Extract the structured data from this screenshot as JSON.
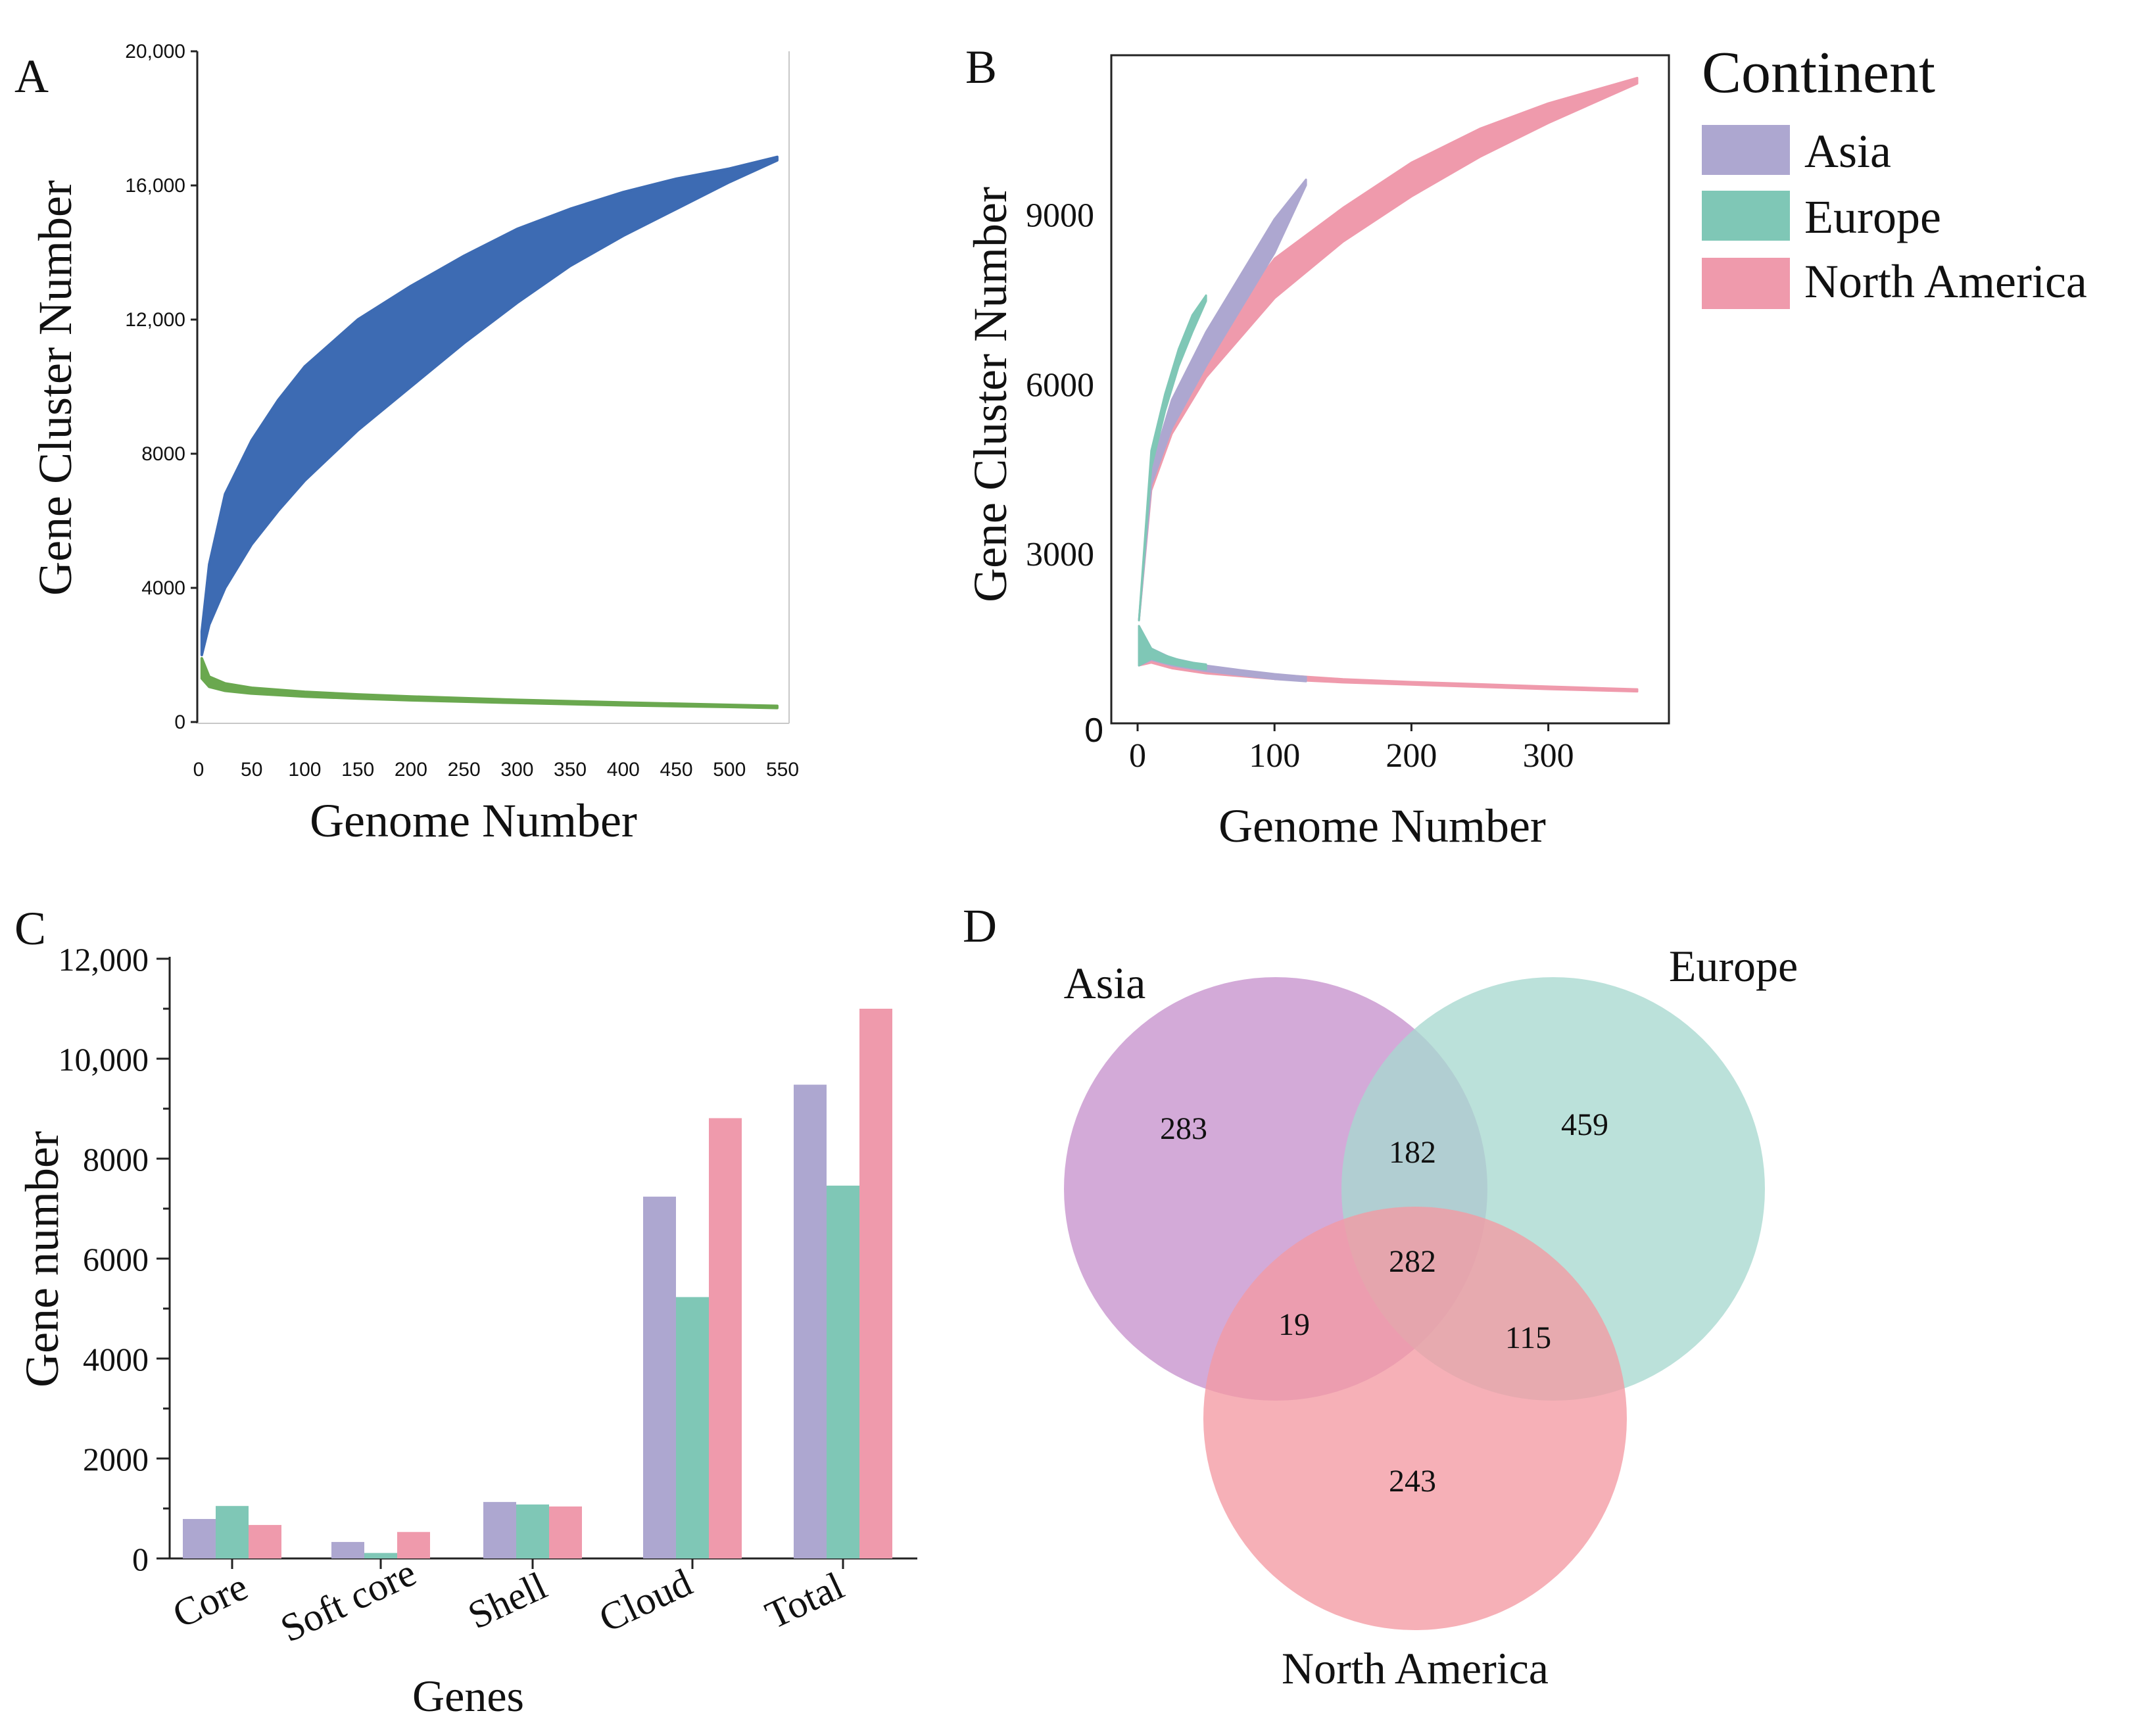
{
  "panels": {
    "A": {
      "letter": "A",
      "xlabel": "Genome Number",
      "ylabel": "Gene Cluster Number",
      "xticks": [
        "0",
        "50",
        "100",
        "150",
        "200",
        "250",
        "300",
        "350",
        "400",
        "450",
        "500",
        "550"
      ],
      "yticks": [
        "0",
        "4000",
        "8000",
        "12,000",
        "16,000",
        "20,000"
      ]
    },
    "B": {
      "letter": "B",
      "xlabel": "Genome Number",
      "ylabel": "Gene Cluster Number",
      "xticks": [
        "0",
        "100",
        "200",
        "300"
      ],
      "yticks": [
        "0",
        "3000",
        "6000",
        "9000"
      ],
      "legend": {
        "title": "Continent",
        "items": [
          {
            "label": "Asia",
            "color": "#ada7d0"
          },
          {
            "label": "Europe",
            "color": "#7fc7b6"
          },
          {
            "label": "North America",
            "color": "#ef9aac"
          }
        ]
      }
    },
    "C": {
      "letter": "C",
      "xlabel": "Genes",
      "ylabel": "Gene number",
      "yticks": [
        "0",
        "2000",
        "4000",
        "6000",
        "8000",
        "10,000",
        "12,000"
      ]
    },
    "D": {
      "letter": "D",
      "labels": {
        "asia": "Asia",
        "europe": "Europe",
        "north_america": "North America"
      },
      "regions": {
        "asia_only": "283",
        "europe_only": "459",
        "na_only": "243",
        "asia_europe": "182",
        "asia_na": "19",
        "europe_na": "115",
        "all_three": "282"
      }
    }
  },
  "chart_data": [
    {
      "panel": "A",
      "type": "area",
      "xlabel": "Genome Number",
      "ylabel": "Gene Cluster Number",
      "xlim": [
        0,
        550
      ],
      "ylim": [
        0,
        20000
      ],
      "series": [
        {
          "role": "pan",
          "color": "#3d6bb3",
          "x": [
            3,
            10,
            25,
            50,
            75,
            100,
            150,
            200,
            250,
            300,
            350,
            400,
            450,
            500,
            545
          ],
          "lower": [
            2000,
            2900,
            4000,
            5300,
            6300,
            7200,
            8700,
            10000,
            11300,
            12500,
            13600,
            14500,
            15300,
            16100,
            16750
          ],
          "upper": [
            2700,
            4700,
            6800,
            8400,
            9600,
            10600,
            12000,
            13000,
            13900,
            14700,
            15300,
            15800,
            16200,
            16500,
            16850
          ]
        },
        {
          "role": "core",
          "color": "#6aa84f",
          "x": [
            3,
            10,
            25,
            50,
            100,
            150,
            200,
            300,
            400,
            500,
            545
          ],
          "lower": [
            1300,
            1050,
            930,
            850,
            760,
            700,
            650,
            570,
            500,
            450,
            420
          ],
          "upper": [
            1900,
            1350,
            1150,
            1020,
            900,
            820,
            760,
            660,
            580,
            510,
            480
          ]
        }
      ]
    },
    {
      "panel": "B",
      "type": "area",
      "xlabel": "Genome Number",
      "ylabel": "Gene Cluster Number",
      "xlim": [
        0,
        390
      ],
      "ylim": [
        0,
        11800
      ],
      "series": [
        {
          "name": "North America",
          "role": "pan",
          "color": "#ef9aac",
          "x": [
            1,
            10,
            25,
            50,
            75,
            100,
            150,
            200,
            250,
            300,
            365
          ],
          "lower": [
            1800,
            4100,
            5100,
            6100,
            6800,
            7500,
            8500,
            9300,
            10000,
            10600,
            11300
          ],
          "upper": [
            1800,
            4400,
            5500,
            6600,
            7400,
            8200,
            9100,
            9900,
            10500,
            10950,
            11400
          ]
        },
        {
          "name": "Asia",
          "role": "pan",
          "color": "#ada7d0",
          "x": [
            1,
            10,
            25,
            50,
            75,
            100,
            123
          ],
          "lower": [
            1800,
            4200,
            5200,
            6300,
            7300,
            8300,
            9500
          ],
          "upper": [
            1800,
            4500,
            5700,
            6900,
            7900,
            8900,
            9600
          ]
        },
        {
          "name": "Europe",
          "role": "pan",
          "color": "#7fc7b6",
          "x": [
            1,
            10,
            20,
            30,
            40,
            50
          ],
          "lower": [
            1800,
            4500,
            5500,
            6300,
            6900,
            7450
          ],
          "upper": [
            1800,
            4800,
            5800,
            6600,
            7200,
            7550
          ]
        },
        {
          "name": "North America",
          "role": "core",
          "color": "#ef9aac",
          "x": [
            1,
            10,
            25,
            50,
            100,
            150,
            200,
            250,
            300,
            365
          ],
          "lower": [
            1000,
            1050,
            950,
            860,
            760,
            700,
            660,
            620,
            580,
            540
          ],
          "upper": [
            1700,
            1250,
            1080,
            960,
            840,
            760,
            710,
            670,
            630,
            580
          ]
        },
        {
          "name": "Asia",
          "role": "core",
          "color": "#ada7d0",
          "x": [
            1,
            10,
            25,
            50,
            75,
            100,
            123
          ],
          "lower": [
            1000,
            1100,
            1000,
            900,
            830,
            760,
            720
          ],
          "upper": [
            1700,
            1300,
            1130,
            1000,
            920,
            850,
            800
          ]
        },
        {
          "name": "Europe",
          "role": "core",
          "color": "#7fc7b6",
          "x": [
            1,
            10,
            20,
            30,
            40,
            50
          ],
          "lower": [
            1000,
            1120,
            1050,
            1000,
            960,
            930
          ],
          "upper": [
            1700,
            1300,
            1180,
            1100,
            1050,
            1020
          ]
        }
      ]
    },
    {
      "panel": "C",
      "type": "bar",
      "xlabel": "Genes",
      "ylabel": "Gene number",
      "categories": [
        "Core",
        "Soft core",
        "Shell",
        "Cloud",
        "Total"
      ],
      "ylim": [
        0,
        12000
      ],
      "series": [
        {
          "name": "Asia",
          "color": "#ada7d0",
          "values": [
            790,
            330,
            1130,
            7240,
            9480
          ]
        },
        {
          "name": "Europe",
          "color": "#7fc7b6",
          "values": [
            1050,
            110,
            1080,
            5230,
            7460
          ]
        },
        {
          "name": "North America",
          "color": "#ef9aac",
          "values": [
            670,
            530,
            1040,
            8810,
            11000
          ]
        }
      ]
    }
  ],
  "venn": {
    "colors": {
      "asia": "#c792cd",
      "europe": "#a8d9cf",
      "north_america": "#f39aa3"
    }
  }
}
